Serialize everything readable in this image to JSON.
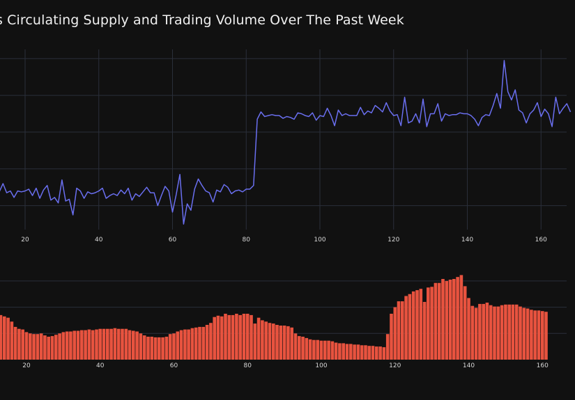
{
  "title": "s Circulating Supply and Trading Volume Over The Past Week",
  "colors": {
    "background": "#111111",
    "line": "#6a6ff0",
    "bar": "#e8533f",
    "grid": "#2a2f3a"
  },
  "chart_data": [
    {
      "type": "line",
      "x_start": 13,
      "x_step": 1,
      "y": [
        62.5,
        67.0,
        62.0,
        63.0,
        59.5,
        63.0,
        62.5,
        63.0,
        64.0,
        60.5,
        64.5,
        59.0,
        63.5,
        66.0,
        58.0,
        59.5,
        56.5,
        69.0,
        57.5,
        58.5,
        50.0,
        64.5,
        63.0,
        59.0,
        62.5,
        61.5,
        62.0,
        63.0,
        64.5,
        59.0,
        60.5,
        61.5,
        60.5,
        63.5,
        61.5,
        64.5,
        58.0,
        61.5,
        60.0,
        62.5,
        65.0,
        62.0,
        62.0,
        55.0,
        60.5,
        65.5,
        63.0,
        51.5,
        61.0,
        72.0,
        45.0,
        56.0,
        52.5,
        64.0,
        69.5,
        66.0,
        63.0,
        62.0,
        57.0,
        63.5,
        62.5,
        66.5,
        65.0,
        61.5,
        63.0,
        63.5,
        62.5,
        64.0,
        64.0,
        66.0,
        102.0,
        106.0,
        103.5,
        104.0,
        104.5,
        104.0,
        104.0,
        102.5,
        103.5,
        103.0,
        102.0,
        105.5,
        105.0,
        104.0,
        103.5,
        105.5,
        101.5,
        104.0,
        103.5,
        108.0,
        104.0,
        98.5,
        107.0,
        104.0,
        105.0,
        104.0,
        104.0,
        104.0,
        108.5,
        104.5,
        106.5,
        105.5,
        109.5,
        108.0,
        106.0,
        111.0,
        106.5,
        104.0,
        104.5,
        98.5,
        114.0,
        100.0,
        101.0,
        105.0,
        100.0,
        113.0,
        98.0,
        105.0,
        105.0,
        110.5,
        101.0,
        105.0,
        104.0,
        104.5,
        104.5,
        105.5,
        105.0,
        105.0,
        104.0,
        102.0,
        98.5,
        103.0,
        104.5,
        104.0,
        109.5,
        116.0,
        108.0,
        134.0,
        117.0,
        112.5,
        118.0,
        107.0,
        105.5,
        100.0,
        105.0,
        107.0,
        111.0,
        103.5,
        107.5,
        105.0,
        98.0,
        114.0,
        105.0,
        108.0,
        110.5,
        106.0
      ],
      "xticks": [
        20,
        40,
        60,
        80,
        100,
        120,
        140,
        160
      ],
      "xlim": [
        13,
        168
      ],
      "ylim": [
        42,
        140
      ],
      "ygrid": [
        55,
        75,
        95,
        115,
        135
      ],
      "grid": true
    },
    {
      "type": "bar",
      "x_start": 13,
      "x_step": 1,
      "values": [
        34.0,
        33.0,
        32.0,
        29.0,
        25.0,
        23.5,
        23.0,
        21.0,
        20.0,
        19.5,
        19.5,
        20.0,
        18.5,
        17.5,
        18.0,
        19.0,
        20.0,
        21.0,
        21.5,
        21.5,
        22.0,
        22.0,
        22.5,
        22.5,
        23.0,
        22.5,
        23.0,
        23.5,
        23.5,
        23.5,
        23.5,
        24.0,
        23.5,
        23.5,
        23.5,
        22.5,
        22.0,
        21.5,
        20.0,
        18.5,
        17.5,
        17.5,
        17.0,
        17.0,
        17.0,
        17.5,
        19.5,
        20.0,
        21.5,
        22.5,
        23.0,
        23.0,
        24.0,
        24.5,
        25.0,
        25.0,
        26.5,
        28.0,
        32.5,
        33.5,
        33.0,
        35.0,
        34.0,
        34.0,
        35.0,
        34.0,
        35.0,
        35.0,
        34.0,
        27.5,
        32.0,
        30.0,
        29.0,
        28.0,
        27.5,
        26.5,
        26.0,
        26.0,
        25.5,
        24.5,
        20.0,
        18.0,
        17.5,
        16.5,
        15.5,
        15.0,
        15.0,
        14.5,
        14.5,
        14.5,
        14.0,
        13.0,
        12.5,
        12.5,
        12.0,
        12.0,
        11.5,
        11.5,
        11.0,
        11.0,
        10.5,
        10.5,
        10.0,
        10.0,
        9.5,
        19.5,
        35.0,
        40.0,
        44.5,
        44.5,
        48.5,
        50.0,
        52.0,
        53.0,
        54.0,
        44.0,
        55.0,
        55.5,
        58.5,
        58.5,
        61.5,
        60.0,
        61.0,
        61.5,
        63.0,
        64.5,
        56.0,
        47.0,
        41.0,
        39.5,
        42.5,
        42.5,
        43.5,
        41.5,
        40.5,
        40.5,
        41.5,
        42.0,
        42.0,
        42.0,
        42.0,
        40.5,
        39.5,
        39.0,
        38.0,
        37.5,
        37.5,
        37.0,
        36.5
      ],
      "xticks": [
        20,
        40,
        60,
        80,
        100,
        120,
        140,
        160
      ],
      "xlim": [
        13,
        168
      ],
      "ylim": [
        0,
        70
      ],
      "ygrid": [
        20,
        40,
        60
      ],
      "grid": true
    }
  ]
}
